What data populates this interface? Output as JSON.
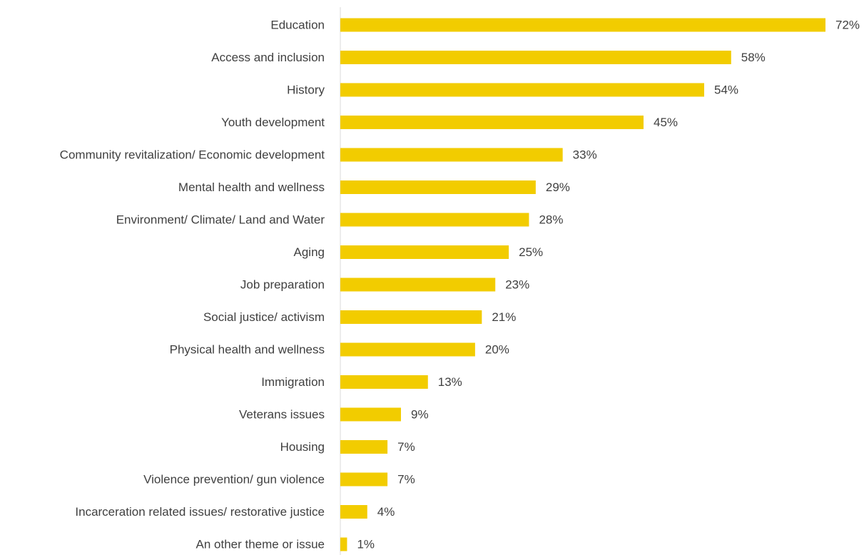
{
  "chart_data": {
    "type": "bar",
    "orientation": "horizontal",
    "categories": [
      "Education",
      "Access and inclusion",
      "History",
      "Youth development",
      "Community revitalization/ Economic development",
      "Mental health and wellness",
      "Environment/ Climate/ Land and Water",
      "Aging",
      "Job preparation",
      "Social justice/ activism",
      "Physical health and wellness",
      "Immigration",
      "Veterans issues",
      "Housing",
      "Violence prevention/ gun violence",
      "Incarceration related issues/ restorative justice",
      "An other theme or issue"
    ],
    "values": [
      72,
      58,
      54,
      45,
      33,
      29,
      28,
      25,
      23,
      21,
      20,
      13,
      9,
      7,
      7,
      4,
      1
    ],
    "value_labels": [
      "72%",
      "58%",
      "54%",
      "45%",
      "33%",
      "29%",
      "28%",
      "25%",
      "23%",
      "21%",
      "20%",
      "13%",
      "9%",
      "7%",
      "7%",
      "4%",
      "1%"
    ],
    "color": "#f2cc00"
  }
}
